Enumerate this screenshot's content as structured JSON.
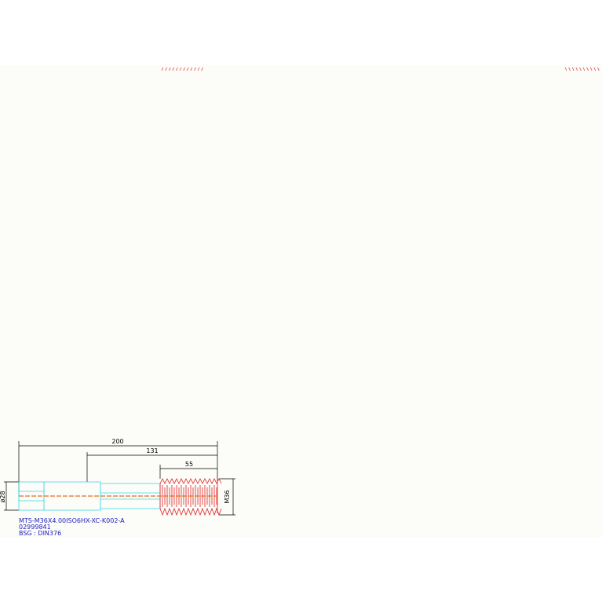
{
  "drawing": {
    "dimensions": {
      "overall_length": "200",
      "neck_length": "131",
      "thread_length": "55",
      "shank_diameter": "ø28",
      "thread_size": "M36"
    },
    "title_block": {
      "designation": "MTS-M36X4.00ISO6HX-XC-K002-A",
      "number": "02999841",
      "standard": "BSG : DIN376"
    }
  }
}
